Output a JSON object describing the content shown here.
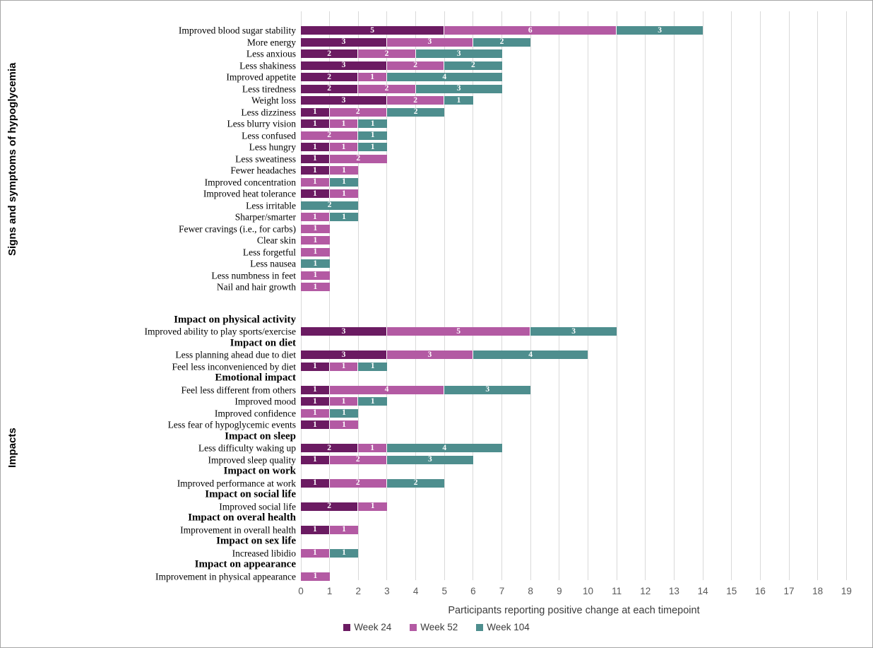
{
  "chart_data": {
    "type": "bar",
    "stacked": true,
    "orientation": "horizontal",
    "xlabel": "Participants reporting positive change at each timepoint",
    "xlim": [
      0,
      19
    ],
    "xtick_step": 1,
    "grid": true,
    "legend_position": "bottom",
    "gridline_color": "#d9d9d9",
    "series": [
      {
        "name": "Week 24",
        "color": "#6B1B62"
      },
      {
        "name": "Week 52",
        "color": "#B35AA3"
      },
      {
        "name": "Week 104",
        "color": "#4E8E8E"
      }
    ],
    "groups": [
      {
        "label": "Signs and symptoms of hypoglycemia",
        "rows": [
          {
            "label": "Improved blood sugar stability",
            "values": [
              5,
              6,
              3
            ]
          },
          {
            "label": "More energy",
            "values": [
              3,
              3,
              2
            ]
          },
          {
            "label": "Less anxious",
            "values": [
              2,
              2,
              3
            ]
          },
          {
            "label": "Less shakiness",
            "values": [
              3,
              2,
              2
            ]
          },
          {
            "label": "Improved appetite",
            "values": [
              2,
              1,
              4
            ]
          },
          {
            "label": "Less tiredness",
            "values": [
              2,
              2,
              3
            ]
          },
          {
            "label": "Weight loss",
            "values": [
              3,
              2,
              1
            ]
          },
          {
            "label": "Less dizziness",
            "values": [
              1,
              2,
              2
            ]
          },
          {
            "label": "Less blurry vision",
            "values": [
              1,
              1,
              1
            ]
          },
          {
            "label": "Less confused",
            "values": [
              0,
              2,
              1
            ]
          },
          {
            "label": "Less hungry",
            "values": [
              1,
              1,
              1
            ]
          },
          {
            "label": "Less sweatiness",
            "values": [
              1,
              2,
              0
            ]
          },
          {
            "label": "Fewer headaches",
            "values": [
              1,
              1,
              0
            ]
          },
          {
            "label": "Improved concentration",
            "values": [
              0,
              1,
              1
            ]
          },
          {
            "label": "Improved heat tolerance",
            "values": [
              1,
              1,
              0
            ]
          },
          {
            "label": "Less irritable",
            "values": [
              0,
              0,
              2
            ]
          },
          {
            "label": "Sharper/smarter",
            "values": [
              0,
              1,
              1
            ]
          },
          {
            "label": "Fewer cravings (i.e., for carbs)",
            "values": [
              0,
              1,
              0
            ]
          },
          {
            "label": "Clear skin",
            "values": [
              0,
              1,
              0
            ]
          },
          {
            "label": "Less forgetful",
            "values": [
              0,
              1,
              0
            ]
          },
          {
            "label": "Less nausea",
            "values": [
              0,
              0,
              1
            ]
          },
          {
            "label": "Less numbness in feet",
            "values": [
              0,
              1,
              0
            ]
          },
          {
            "label": "Nail and hair growth",
            "values": [
              0,
              1,
              0
            ]
          }
        ]
      },
      {
        "label": "Impacts",
        "rows": [
          {
            "header": "Impact on physical activity"
          },
          {
            "label": "Improved ability to play sports/exercise",
            "values": [
              3,
              5,
              3
            ]
          },
          {
            "header": "Impact on diet"
          },
          {
            "label": "Less planning ahead due to diet",
            "values": [
              3,
              3,
              4
            ]
          },
          {
            "label": "Feel less inconvenienced by diet",
            "values": [
              1,
              1,
              1
            ]
          },
          {
            "header": "Emotional impact"
          },
          {
            "label": "Feel less different from others",
            "values": [
              1,
              4,
              3
            ]
          },
          {
            "label": "Improved mood",
            "values": [
              1,
              1,
              1
            ]
          },
          {
            "label": "Improved confidence",
            "values": [
              0,
              1,
              1
            ]
          },
          {
            "label": "Less fear of hypoglycemic events",
            "values": [
              1,
              1,
              0
            ]
          },
          {
            "header": "Impact on sleep"
          },
          {
            "label": "Less difficulty waking up",
            "values": [
              2,
              1,
              4
            ]
          },
          {
            "label": "Improved sleep quality",
            "values": [
              1,
              2,
              3
            ]
          },
          {
            "header": "Impact on work"
          },
          {
            "label": "Improved performance at work",
            "values": [
              1,
              2,
              2
            ]
          },
          {
            "header": "Impact on social life"
          },
          {
            "label": "Improved social life",
            "values": [
              2,
              1,
              0
            ]
          },
          {
            "header": "Impact on overal health"
          },
          {
            "label": "Improvement in overall health",
            "values": [
              1,
              1,
              0
            ]
          },
          {
            "header": "Impact on sex life"
          },
          {
            "label": "Increased libidio",
            "values": [
              0,
              1,
              1
            ]
          },
          {
            "header": "Impact on appearance"
          },
          {
            "label": "Improvement in physical appearance",
            "values": [
              0,
              1,
              0
            ]
          }
        ]
      }
    ]
  }
}
